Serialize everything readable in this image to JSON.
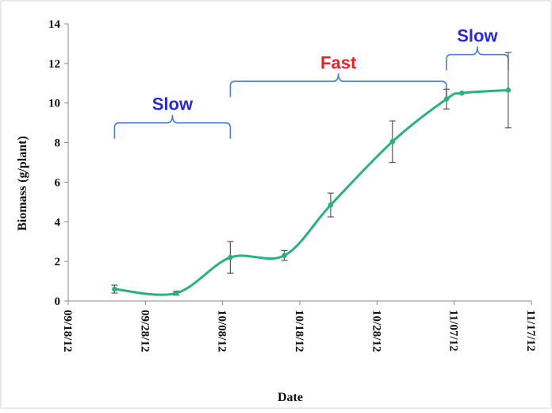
{
  "chart_data": {
    "type": "line",
    "title": "",
    "xlabel": "Date",
    "ylabel": "Biomass (g/plant)",
    "x_ticks": [
      "09/18/12",
      "09/28/12",
      "10/08/12",
      "10/18/12",
      "10/28/12",
      "11/07/12",
      "11/17/12"
    ],
    "y_ticks": [
      0,
      2,
      4,
      6,
      8,
      10,
      12,
      14
    ],
    "xlim": [
      "09/18/12",
      "11/17/12"
    ],
    "ylim": [
      0,
      14
    ],
    "grid": false,
    "legend": "none",
    "line_color": "#2bb07f",
    "series": [
      {
        "points": [
          {
            "x": "09/24/12",
            "y": 0.6,
            "err": 0.2
          },
          {
            "x": "10/02/12",
            "y": 0.4,
            "err": 0.1
          },
          {
            "x": "10/09/12",
            "y": 2.2,
            "err": 0.8
          },
          {
            "x": "10/16/12",
            "y": 2.3,
            "err": 0.25
          },
          {
            "x": "10/22/12",
            "y": 4.85,
            "err": 0.6
          },
          {
            "x": "10/30/12",
            "y": 8.05,
            "err": 1.05
          },
          {
            "x": "11/06/12",
            "y": 10.2,
            "err": 0.5
          },
          {
            "x": "11/08/12",
            "y": 10.5,
            "err": 0
          },
          {
            "x": "11/14/12",
            "y": 10.65,
            "err": 1.9
          }
        ]
      }
    ],
    "annotations": [
      {
        "text": "Slow",
        "color": "#2a2ad0",
        "from": "09/24/12",
        "to": "10/09/12",
        "level": 9.0,
        "bracket_color": "#4a7fd0"
      },
      {
        "text": "Fast",
        "color": "#e0242a",
        "from": "10/09/12",
        "to": "11/06/12",
        "level": 11.1,
        "bracket_color": "#4a7fd0"
      },
      {
        "text": "Slow",
        "color": "#2a2ad0",
        "from": "11/06/12",
        "to": "11/14/12",
        "level": 12.45,
        "bracket_color": "#4a7fd0"
      }
    ]
  }
}
